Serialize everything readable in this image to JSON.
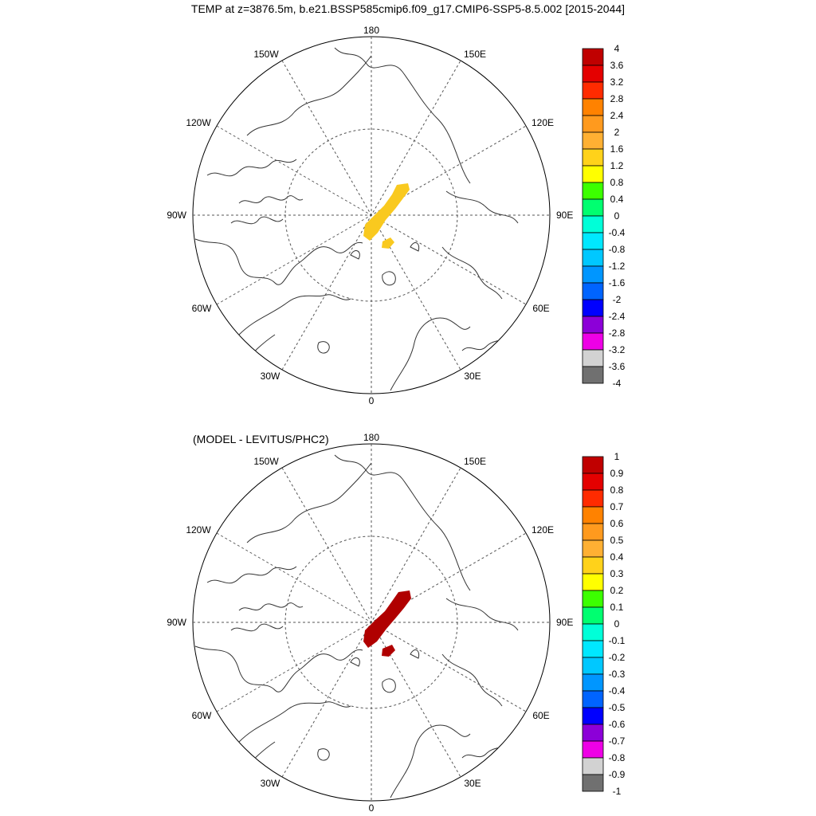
{
  "title": "TEMP at z=3876.5m, b.e21.BSSP585cmip6.f09_g17.CMIP6-SSP5-8.5.002 [2015-2044]",
  "subtitle": "(MODEL - LEVITUS/PHC2)",
  "longitude_labels": {
    "top": "180",
    "bottom": "0",
    "left": "90W",
    "right": "90E",
    "upper_left_1": "150W",
    "upper_left_2": "120W",
    "upper_right_1": "150E",
    "upper_right_2": "120E",
    "lower_left_1": "60W",
    "lower_left_2": "30W",
    "lower_right_1": "60E",
    "lower_right_2": "30E"
  },
  "maps": [
    {
      "name": "model-temperature-map",
      "anomaly_fill_color": "#f9c91f",
      "colorbar": {
        "labels": [
          "4",
          "3.6",
          "3.2",
          "2.8",
          "2.4",
          "2",
          "1.6",
          "1.2",
          "0.8",
          "0.4",
          "0",
          "-0.4",
          "-0.8",
          "-1.2",
          "-1.6",
          "-2",
          "-2.4",
          "-2.8",
          "-3.2",
          "-3.6",
          "-4"
        ],
        "colors": [
          "#c00000",
          "#e40000",
          "#ff2b00",
          "#ff8200",
          "#ff9a1e",
          "#ffb033",
          "#ffd21a",
          "#ffff00",
          "#3cff00",
          "#00ff70",
          "#00ffd8",
          "#00e8ff",
          "#00c8ff",
          "#0096ff",
          "#0064ff",
          "#0000ff",
          "#8c00d8",
          "#ee00e6",
          "#d2d2d2",
          "#707070"
        ]
      }
    },
    {
      "name": "difference-map",
      "anomaly_fill_color": "#b00000",
      "colorbar": {
        "labels": [
          "1",
          "0.9",
          "0.8",
          "0.7",
          "0.6",
          "0.5",
          "0.4",
          "0.3",
          "0.2",
          "0.1",
          "0",
          "-0.1",
          "-0.2",
          "-0.3",
          "-0.4",
          "-0.5",
          "-0.6",
          "-0.7",
          "-0.8",
          "-0.9",
          "-1"
        ],
        "colors": [
          "#c00000",
          "#e40000",
          "#ff2b00",
          "#ff8200",
          "#ff9a1e",
          "#ffb033",
          "#ffd21a",
          "#ffff00",
          "#3cff00",
          "#00ff70",
          "#00ffd8",
          "#00e8ff",
          "#00c8ff",
          "#0096ff",
          "#0064ff",
          "#0000ff",
          "#8c00d8",
          "#ee00e6",
          "#d2d2d2",
          "#707070"
        ]
      }
    }
  ]
}
